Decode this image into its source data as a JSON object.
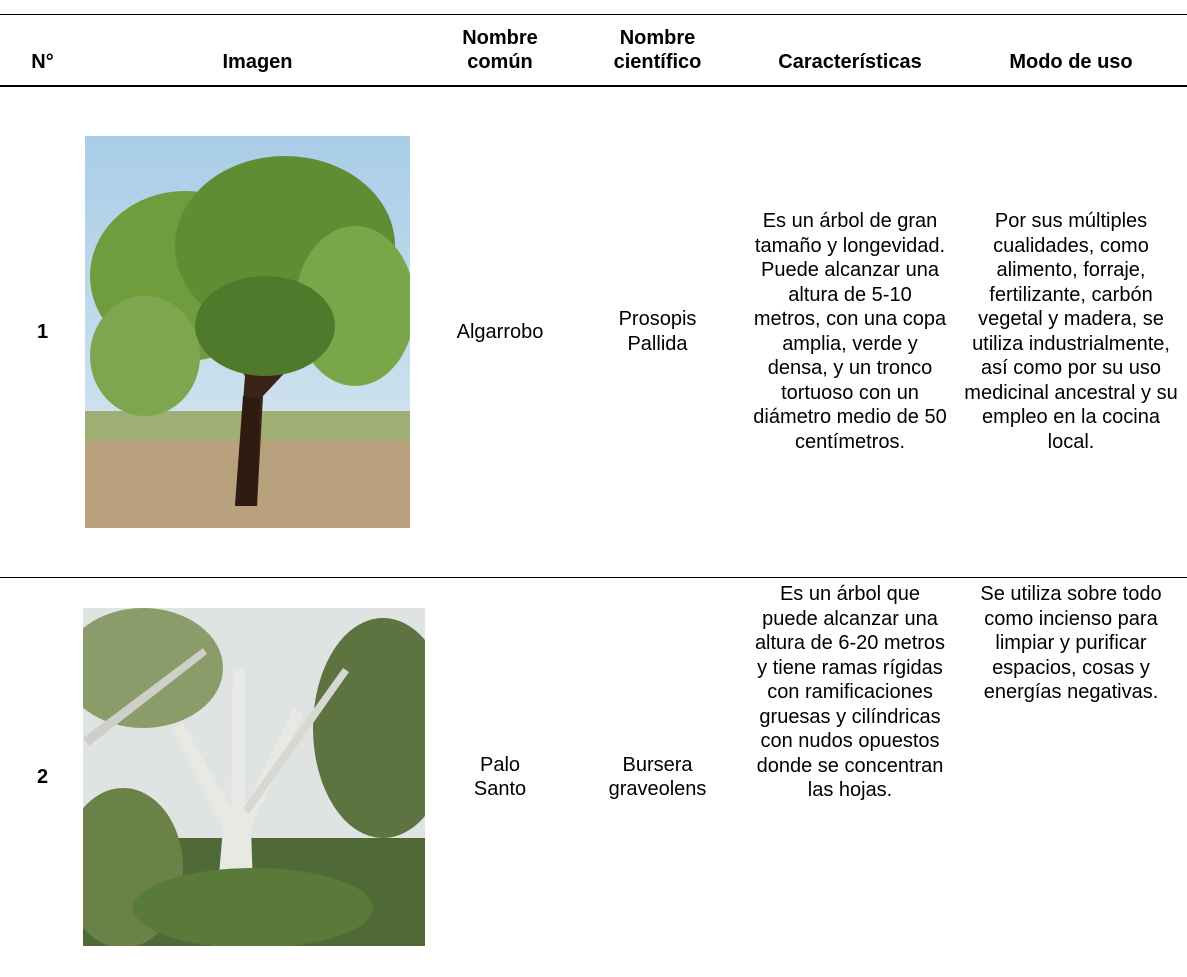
{
  "header": {
    "columns": [
      "N°",
      "Imagen",
      "Nombre común",
      "Nombre científico",
      "Características",
      "Modo de uso"
    ]
  },
  "rows": [
    {
      "number": "1",
      "common_name": "Algarrobo",
      "scientific_name": "Prosopis Pallida",
      "characteristics": "Es un árbol de gran tamaño y longevidad. Puede alcanzar una altura de 5-10 metros, con una copa amplia, verde y densa, y un tronco tortuoso con un diámetro medio de 50 centímetros.",
      "use": "Por sus múltiples cualidades, como alimento, forraje, fertilizante, carbón vegetal y madera, se utiliza industrialmente, así como por su uso medicinal ancestral y su empleo en la cocina local."
    },
    {
      "number": "2",
      "common_name": "Palo Santo",
      "scientific_name": "Bursera graveolens",
      "characteristics": "Es un árbol que puede alcanzar una altura de 6-20 metros y tiene ramas rígidas con ramificaciones gruesas y cilíndricas con nudos opuestos donde se concentran las hojas.",
      "use": "Se utiliza sobre todo como incienso para limpiar y purificar espacios, cosas y energías negativas."
    }
  ]
}
